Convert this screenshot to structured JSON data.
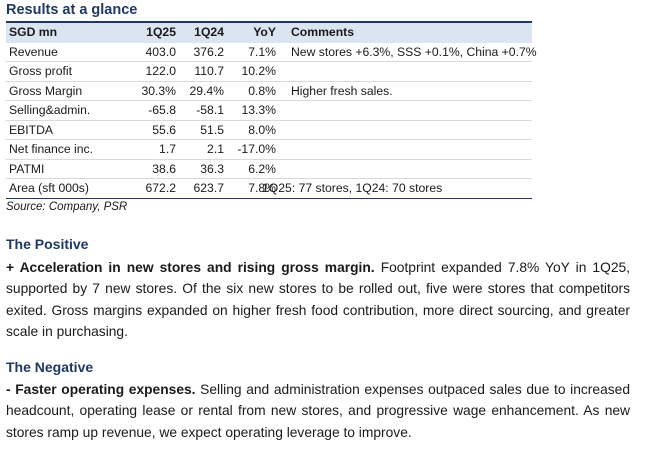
{
  "results": {
    "title": "Results at a glance",
    "headers": [
      "SGD mn",
      "1Q25",
      "1Q24",
      "YoY",
      "Comments"
    ],
    "rows": [
      {
        "label": "Revenue",
        "q125": "403.0",
        "q124": "376.2",
        "yoy": "7.1%",
        "comment": "New stores +6.3%, SSS +0.1%, China +0.7%"
      },
      {
        "label": "Gross profit",
        "q125": "122.0",
        "q124": "110.7",
        "yoy": "10.2%",
        "comment": ""
      },
      {
        "label": "Gross Margin",
        "q125": "30.3%",
        "q124": "29.4%",
        "yoy": "0.8%",
        "comment": "Higher fresh sales."
      },
      {
        "label": "Selling&admin.",
        "q125": "-65.8",
        "q124": "-58.1",
        "yoy": "13.3%",
        "comment": ""
      },
      {
        "label": "EBITDA",
        "q125": "55.6",
        "q124": "51.5",
        "yoy": "8.0%",
        "comment": ""
      },
      {
        "label": "Net finance inc.",
        "q125": "1.7",
        "q124": "2.1",
        "yoy": "-17.0%",
        "comment": ""
      },
      {
        "label": "PATMI",
        "q125": "38.6",
        "q124": "36.3",
        "yoy": "6.2%",
        "comment": ""
      },
      {
        "label": "Area (sft 000s)",
        "q125": "672.2",
        "q124": "623.7",
        "yoy": "7.8%",
        "comment": "1Q25: 77 stores, 1Q24: 70 stores"
      }
    ],
    "source": "Source: Company, PSR"
  },
  "positive": {
    "heading": "The Positive",
    "lead": "+ Acceleration in new stores and rising gross margin.",
    "body": " Footprint expanded 7.8% YoY in 1Q25, supported by 7 new stores. Of the six new stores to be rolled out, five were stores that competitors exited. Gross margins expanded on higher fresh food contribution, more direct sourcing, and greater scale in purchasing."
  },
  "negative": {
    "heading": "The Negative",
    "lead": "- Faster operating expenses.",
    "body": " Selling and administration expenses outpaced sales due to increased headcount, operating lease or rental from new stores, and progressive wage enhancement. As new stores ramp up revenue, we expect operating leverage to improve."
  }
}
